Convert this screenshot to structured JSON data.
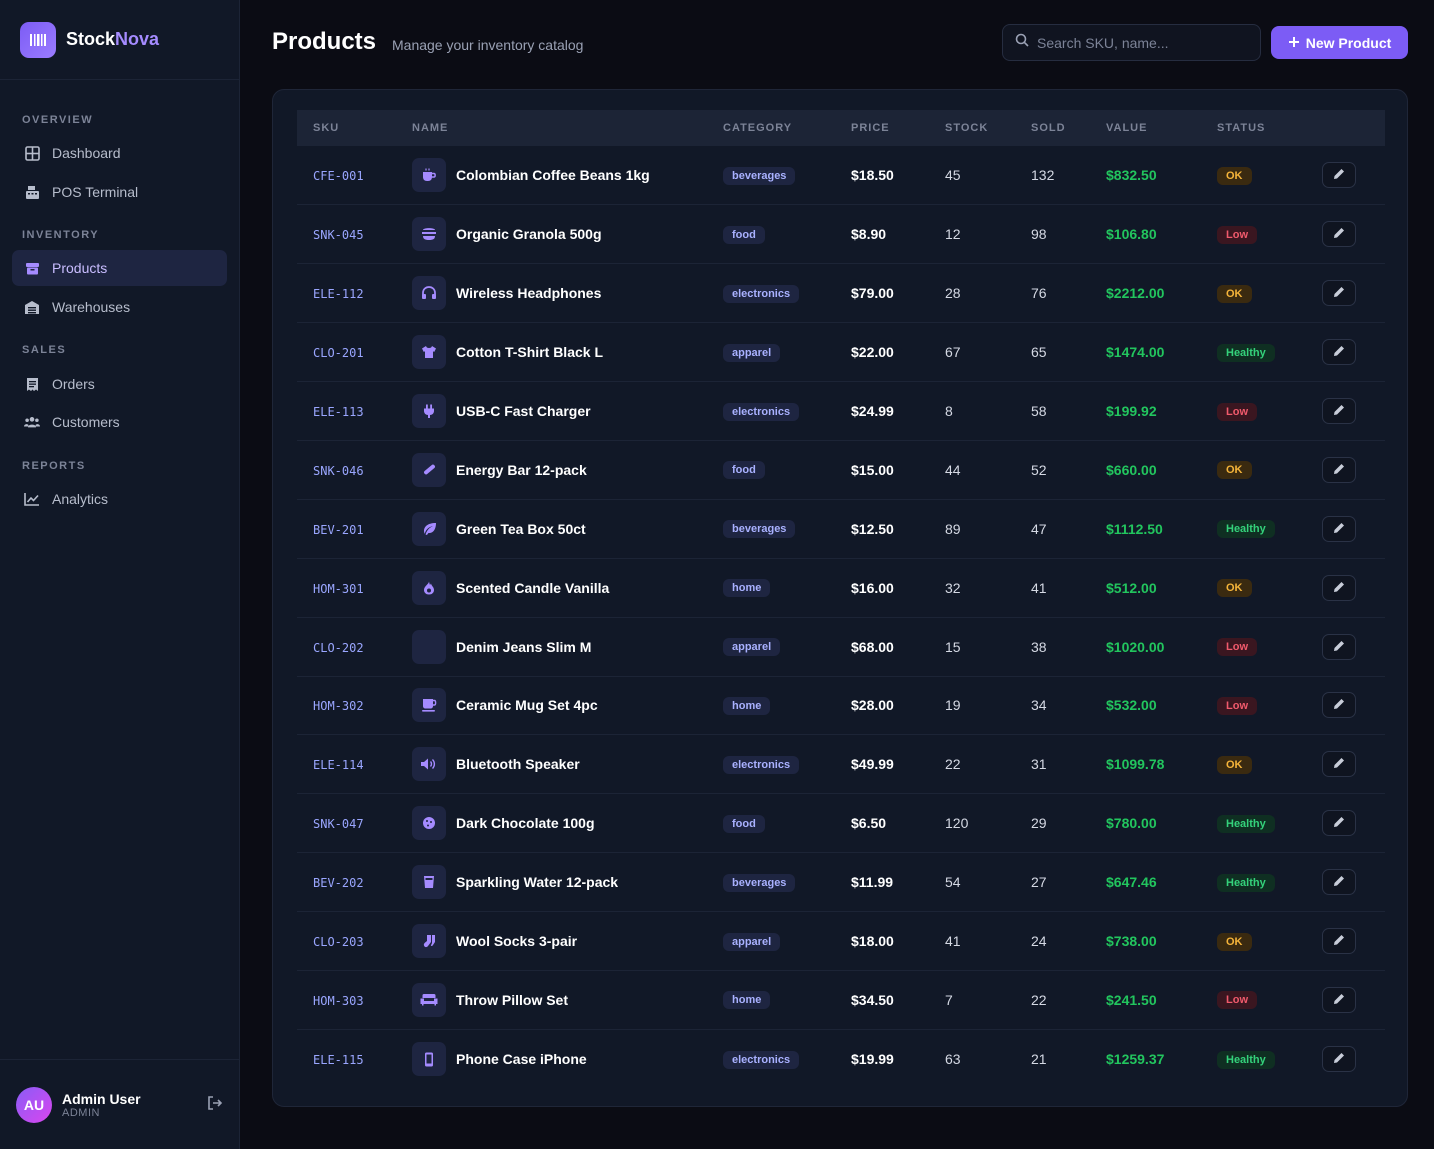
{
  "brand": {
    "name_prefix": "Stock",
    "name_accent": "Nova",
    "logo_icon": "barcode-icon"
  },
  "nav": {
    "sections": [
      {
        "title": "OVERVIEW",
        "items": [
          {
            "label": "Dashboard",
            "icon": "grid-icon"
          },
          {
            "label": "POS Terminal",
            "icon": "cash-register-icon"
          }
        ]
      },
      {
        "title": "INVENTORY",
        "items": [
          {
            "label": "Products",
            "icon": "box-icon",
            "active": true
          },
          {
            "label": "Warehouses",
            "icon": "warehouse-icon"
          }
        ]
      },
      {
        "title": "SALES",
        "items": [
          {
            "label": "Orders",
            "icon": "receipt-icon"
          },
          {
            "label": "Customers",
            "icon": "users-icon"
          }
        ]
      },
      {
        "title": "REPORTS",
        "items": [
          {
            "label": "Analytics",
            "icon": "chart-line-icon"
          }
        ]
      }
    ]
  },
  "user": {
    "initials": "AU",
    "name": "Admin User",
    "role": "ADMIN"
  },
  "header": {
    "title": "Products",
    "subtitle": "Manage your inventory catalog",
    "search_placeholder": "Search SKU, name...",
    "new_button_label": "New Product"
  },
  "table": {
    "columns": [
      "SKU",
      "NAME",
      "CATEGORY",
      "PRICE",
      "STOCK",
      "SOLD",
      "VALUE",
      "STATUS",
      ""
    ],
    "rows": [
      {
        "sku": "CFE-001",
        "name": "Colombian Coffee Beans 1kg",
        "icon": "coffee-icon",
        "category": "beverages",
        "price": "$18.50",
        "stock": "45",
        "sold": "132",
        "value": "$832.50",
        "status": "OK"
      },
      {
        "sku": "SNK-045",
        "name": "Organic Granola 500g",
        "icon": "bowl-icon",
        "category": "food",
        "price": "$8.90",
        "stock": "12",
        "sold": "98",
        "value": "$106.80",
        "status": "Low"
      },
      {
        "sku": "ELE-112",
        "name": "Wireless Headphones",
        "icon": "headphones-icon",
        "category": "electronics",
        "price": "$79.00",
        "stock": "28",
        "sold": "76",
        "value": "$2212.00",
        "status": "OK"
      },
      {
        "sku": "CLO-201",
        "name": "Cotton T-Shirt Black L",
        "icon": "shirt-icon",
        "category": "apparel",
        "price": "$22.00",
        "stock": "67",
        "sold": "65",
        "value": "$1474.00",
        "status": "Healthy"
      },
      {
        "sku": "ELE-113",
        "name": "USB-C Fast Charger",
        "icon": "plug-icon",
        "category": "electronics",
        "price": "$24.99",
        "stock": "8",
        "sold": "58",
        "value": "$199.92",
        "status": "Low"
      },
      {
        "sku": "SNK-046",
        "name": "Energy Bar 12-pack",
        "icon": "bar-icon",
        "category": "food",
        "price": "$15.00",
        "stock": "44",
        "sold": "52",
        "value": "$660.00",
        "status": "OK"
      },
      {
        "sku": "BEV-201",
        "name": "Green Tea Box 50ct",
        "icon": "leaf-icon",
        "category": "beverages",
        "price": "$12.50",
        "stock": "89",
        "sold": "47",
        "value": "$1112.50",
        "status": "Healthy"
      },
      {
        "sku": "HOM-301",
        "name": "Scented Candle Vanilla",
        "icon": "fire-icon",
        "category": "home",
        "price": "$16.00",
        "stock": "32",
        "sold": "41",
        "value": "$512.00",
        "status": "OK"
      },
      {
        "sku": "CLO-202",
        "name": "Denim Jeans Slim M",
        "icon": "",
        "category": "apparel",
        "price": "$68.00",
        "stock": "15",
        "sold": "38",
        "value": "$1020.00",
        "status": "Low"
      },
      {
        "sku": "HOM-302",
        "name": "Ceramic Mug Set 4pc",
        "icon": "mug-icon",
        "category": "home",
        "price": "$28.00",
        "stock": "19",
        "sold": "34",
        "value": "$532.00",
        "status": "Low"
      },
      {
        "sku": "ELE-114",
        "name": "Bluetooth Speaker",
        "icon": "speaker-icon",
        "category": "electronics",
        "price": "$49.99",
        "stock": "22",
        "sold": "31",
        "value": "$1099.78",
        "status": "OK"
      },
      {
        "sku": "SNK-047",
        "name": "Dark Chocolate 100g",
        "icon": "cookie-icon",
        "category": "food",
        "price": "$6.50",
        "stock": "120",
        "sold": "29",
        "value": "$780.00",
        "status": "Healthy"
      },
      {
        "sku": "BEV-202",
        "name": "Sparkling Water 12-pack",
        "icon": "glass-icon",
        "category": "beverages",
        "price": "$11.99",
        "stock": "54",
        "sold": "27",
        "value": "$647.46",
        "status": "Healthy"
      },
      {
        "sku": "CLO-203",
        "name": "Wool Socks 3-pair",
        "icon": "socks-icon",
        "category": "apparel",
        "price": "$18.00",
        "stock": "41",
        "sold": "24",
        "value": "$738.00",
        "status": "OK"
      },
      {
        "sku": "HOM-303",
        "name": "Throw Pillow Set",
        "icon": "couch-icon",
        "category": "home",
        "price": "$34.50",
        "stock": "7",
        "sold": "22",
        "value": "$241.50",
        "status": "Low"
      },
      {
        "sku": "ELE-115",
        "name": "Phone Case iPhone",
        "icon": "phone-icon",
        "category": "electronics",
        "price": "$19.99",
        "stock": "63",
        "sold": "21",
        "value": "$1259.37",
        "status": "Healthy"
      }
    ]
  },
  "colors": {
    "accent": "#7c5cf5",
    "value_green": "#22c55e",
    "status_ok": "#f5b43a",
    "status_low": "#f05a6c",
    "status_healthy": "#34d27b"
  }
}
